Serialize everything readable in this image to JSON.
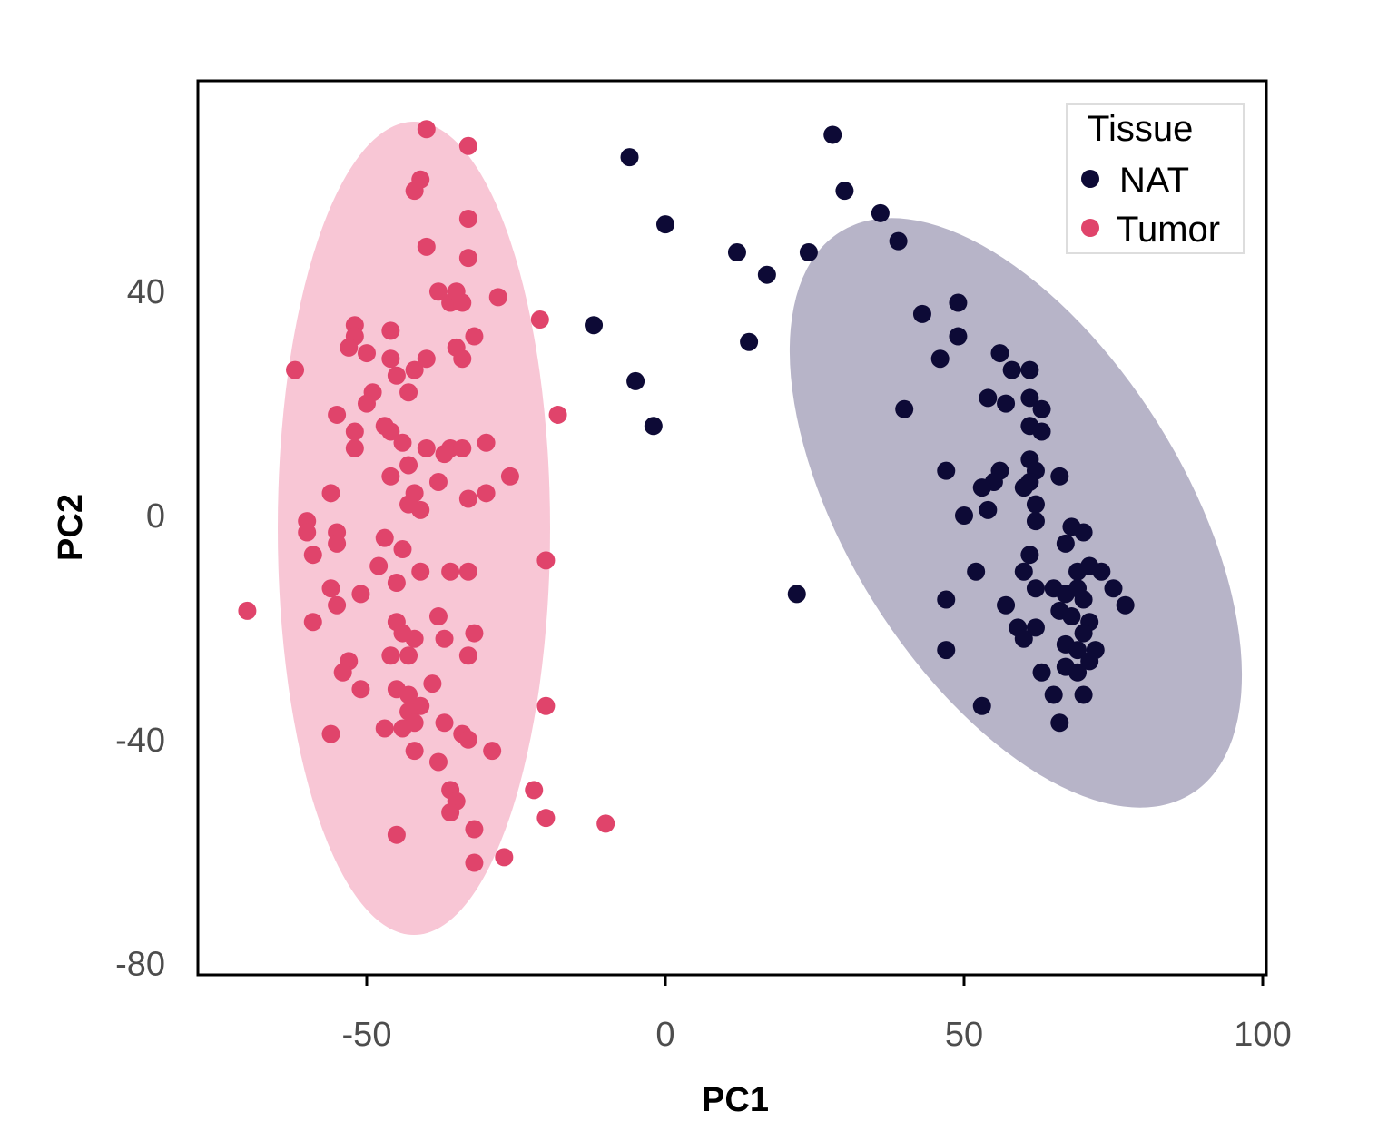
{
  "chart_data": {
    "type": "scatter",
    "xlabel": "PC1",
    "ylabel": "PC2",
    "xlim": [
      -78,
      100
    ],
    "ylim": [
      -82,
      78
    ],
    "x_ticks": [
      -50,
      0,
      50,
      100
    ],
    "y_ticks": [
      -80,
      -40,
      0,
      40
    ],
    "grid": false,
    "legend": {
      "title": "Tissue",
      "position": "top-right",
      "entries": [
        {
          "name": "NAT",
          "color": "#0d0a36"
        },
        {
          "name": "Tumor",
          "color": "#e0446b"
        }
      ]
    },
    "series": [
      {
        "name": "NAT",
        "color": "#0d0a36",
        "ellipse_color": "#b7b4c8",
        "points": [
          [
            28,
            68
          ],
          [
            30,
            58
          ],
          [
            36,
            54
          ],
          [
            39,
            49
          ],
          [
            -6,
            64
          ],
          [
            0,
            52
          ],
          [
            12,
            47
          ],
          [
            17,
            43
          ],
          [
            24,
            47
          ],
          [
            -12,
            34
          ],
          [
            14,
            31
          ],
          [
            -5,
            24
          ],
          [
            -2,
            16
          ],
          [
            22,
            -14
          ],
          [
            43,
            36
          ],
          [
            49,
            38
          ],
          [
            49,
            32
          ],
          [
            46,
            28
          ],
          [
            56,
            29
          ],
          [
            40,
            19
          ],
          [
            58,
            26
          ],
          [
            61,
            26
          ],
          [
            54,
            21
          ],
          [
            57,
            20
          ],
          [
            61,
            21
          ],
          [
            63,
            19
          ],
          [
            61,
            16
          ],
          [
            63,
            15
          ],
          [
            61,
            10
          ],
          [
            62,
            8
          ],
          [
            66,
            7
          ],
          [
            47,
            8
          ],
          [
            56,
            8
          ],
          [
            55,
            6
          ],
          [
            61,
            6
          ],
          [
            53,
            5
          ],
          [
            60,
            5
          ],
          [
            62,
            2
          ],
          [
            54,
            1
          ],
          [
            50,
            0
          ],
          [
            62,
            -1
          ],
          [
            68,
            -2
          ],
          [
            70,
            -3
          ],
          [
            67,
            -5
          ],
          [
            61,
            -7
          ],
          [
            52,
            -10
          ],
          [
            69,
            -10
          ],
          [
            60,
            -10
          ],
          [
            71,
            -9
          ],
          [
            73,
            -10
          ],
          [
            62,
            -13
          ],
          [
            65,
            -13
          ],
          [
            67,
            -14
          ],
          [
            70,
            -15
          ],
          [
            69,
            -13
          ],
          [
            66,
            -17
          ],
          [
            75,
            -13
          ],
          [
            77,
            -16
          ],
          [
            47,
            -15
          ],
          [
            57,
            -16
          ],
          [
            68,
            -18
          ],
          [
            71,
            -19
          ],
          [
            70,
            -21
          ],
          [
            59,
            -20
          ],
          [
            60,
            -22
          ],
          [
            62,
            -20
          ],
          [
            67,
            -23
          ],
          [
            69,
            -24
          ],
          [
            72,
            -24
          ],
          [
            47,
            -24
          ],
          [
            67,
            -27
          ],
          [
            71,
            -26
          ],
          [
            63,
            -28
          ],
          [
            69,
            -28
          ],
          [
            53,
            -34
          ],
          [
            65,
            -32
          ],
          [
            70,
            -32
          ],
          [
            66,
            -37
          ]
        ]
      },
      {
        "name": "Tumor",
        "color": "#e0446b",
        "ellipse_color": "#f8c6d5",
        "points": [
          [
            -40,
            69
          ],
          [
            -33,
            66
          ],
          [
            -42,
            58
          ],
          [
            -41,
            60
          ],
          [
            -33,
            53
          ],
          [
            -40,
            48
          ],
          [
            -33,
            46
          ],
          [
            -38,
            40
          ],
          [
            -36,
            38
          ],
          [
            -34,
            38
          ],
          [
            -35,
            40
          ],
          [
            -28,
            39
          ],
          [
            -21,
            35
          ],
          [
            -52,
            34
          ],
          [
            -52,
            32
          ],
          [
            -46,
            33
          ],
          [
            -53,
            30
          ],
          [
            -50,
            29
          ],
          [
            -46,
            28
          ],
          [
            -40,
            28
          ],
          [
            -35,
            30
          ],
          [
            -32,
            32
          ],
          [
            -34,
            28
          ],
          [
            -62,
            26
          ],
          [
            -42,
            26
          ],
          [
            -45,
            25
          ],
          [
            -43,
            22
          ],
          [
            -49,
            22
          ],
          [
            -50,
            20
          ],
          [
            -55,
            18
          ],
          [
            -47,
            16
          ],
          [
            -52,
            15
          ],
          [
            -46,
            15
          ],
          [
            -44,
            13
          ],
          [
            -18,
            18
          ],
          [
            -40,
            12
          ],
          [
            -37,
            11
          ],
          [
            -36,
            12
          ],
          [
            -34,
            12
          ],
          [
            -30,
            13
          ],
          [
            -52,
            12
          ],
          [
            -46,
            7
          ],
          [
            -43,
            9
          ],
          [
            -38,
            6
          ],
          [
            -26,
            7
          ],
          [
            -56,
            4
          ],
          [
            -42,
            4
          ],
          [
            -41,
            1
          ],
          [
            -43,
            2
          ],
          [
            -33,
            3
          ],
          [
            -30,
            4
          ],
          [
            -60,
            -1
          ],
          [
            -60,
            -3
          ],
          [
            -55,
            -3
          ],
          [
            -55,
            -5
          ],
          [
            -59,
            -7
          ],
          [
            -47,
            -4
          ],
          [
            -44,
            -6
          ],
          [
            -48,
            -9
          ],
          [
            -36,
            -10
          ],
          [
            -33,
            -10
          ],
          [
            -20,
            -8
          ],
          [
            -41,
            -10
          ],
          [
            -45,
            -12
          ],
          [
            -56,
            -13
          ],
          [
            -51,
            -14
          ],
          [
            -55,
            -16
          ],
          [
            -70,
            -17
          ],
          [
            -59,
            -19
          ],
          [
            -38,
            -18
          ],
          [
            -45,
            -19
          ],
          [
            -44,
            -21
          ],
          [
            -42,
            -22
          ],
          [
            -37,
            -22
          ],
          [
            -32,
            -21
          ],
          [
            -46,
            -25
          ],
          [
            -43,
            -25
          ],
          [
            -33,
            -25
          ],
          [
            -53,
            -26
          ],
          [
            -54,
            -28
          ],
          [
            -51,
            -31
          ],
          [
            -45,
            -31
          ],
          [
            -43,
            -32
          ],
          [
            -39,
            -30
          ],
          [
            -41,
            -34
          ],
          [
            -43,
            -35
          ],
          [
            -42,
            -37
          ],
          [
            -37,
            -37
          ],
          [
            -20,
            -34
          ],
          [
            -47,
            -38
          ],
          [
            -44,
            -38
          ],
          [
            -42,
            -42
          ],
          [
            -34,
            -39
          ],
          [
            -33,
            -40
          ],
          [
            -29,
            -42
          ],
          [
            -38,
            -44
          ],
          [
            -56,
            -39
          ],
          [
            -36,
            -49
          ],
          [
            -35,
            -51
          ],
          [
            -36,
            -53
          ],
          [
            -22,
            -49
          ],
          [
            -20,
            -54
          ],
          [
            -32,
            -56
          ],
          [
            -45,
            -57
          ],
          [
            -27,
            -61
          ],
          [
            -32,
            -62
          ],
          [
            -10,
            -55
          ]
        ]
      }
    ]
  }
}
